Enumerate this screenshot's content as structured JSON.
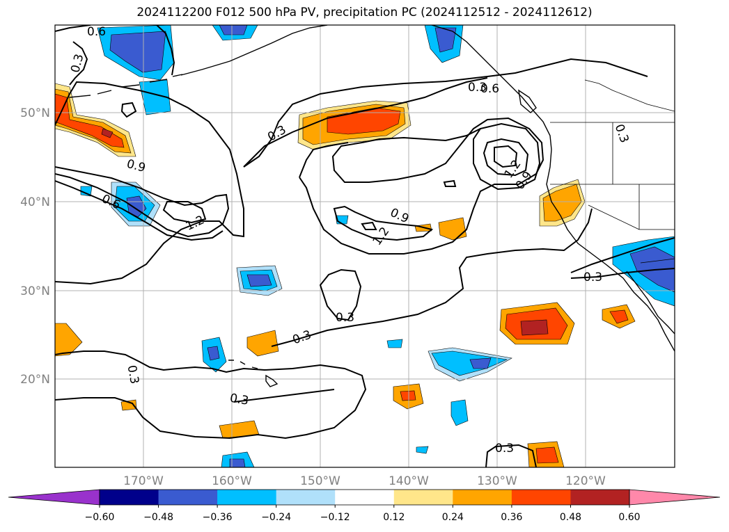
{
  "title": "2024112200 F012 500 hPa PV, precipitation PC (2024112512 - 2024112612)",
  "lon_labels": [
    "170°W",
    "160°W",
    "150°W",
    "140°W",
    "130°W",
    "120°W"
  ],
  "lat_labels": [
    "50°N",
    "40°N",
    "30°N",
    "20°N"
  ],
  "pv_contour_labels": [
    "0.6",
    "0.3",
    "0.3",
    "0.9",
    "0.6",
    "1.2",
    "0.3",
    "0.9",
    "1.2",
    "0.6",
    "1.2",
    "0.9",
    "0.3",
    "0.3",
    "0.3",
    "0.3",
    "0.3",
    "0.3",
    "0.3"
  ],
  "colorbar": {
    "ticks": [
      "−0.60",
      "−0.48",
      "−0.36",
      "−0.24",
      "−0.12",
      "0.12",
      "0.24",
      "0.36",
      "0.48",
      "0.60"
    ],
    "colors": [
      "#9932cc",
      "#00008b",
      "#3a5bd0",
      "#00bfff",
      "#b0e0fa",
      "#ffffff",
      "#ffe68a",
      "#ffa500",
      "#ff4500",
      "#b22222",
      "#ff88aa"
    ]
  }
}
